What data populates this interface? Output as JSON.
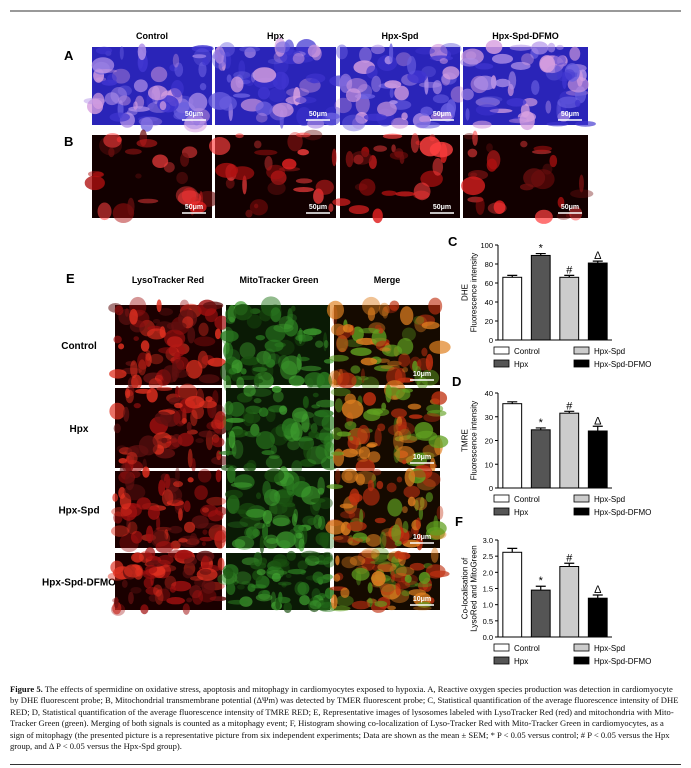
{
  "panels": {
    "labels": [
      "A",
      "B",
      "C",
      "D",
      "E",
      "F"
    ],
    "columns_AB": [
      "Control",
      "Hpx",
      "Hpx-Spd",
      "Hpx-Spd-DFMO"
    ],
    "scale_AB": "50μm",
    "columns_E": [
      "LysoTracker Red",
      "MitoTracker Green",
      "Merge"
    ],
    "rows_E": [
      "Control",
      "Hpx",
      "Hpx-Spd",
      "Hpx-Spd-DFMO"
    ],
    "scale_E": "10μm"
  },
  "chart_data": [
    {
      "type": "bar",
      "y_label": [
        "DHE",
        "Fluorescence intensity"
      ],
      "categories": [
        "Control",
        "Hpx",
        "Hpx-Spd",
        "Hpx-Spd-DFMO"
      ],
      "values": [
        66,
        89,
        66,
        81
      ],
      "errors": [
        2,
        2,
        2,
        2
      ],
      "annotations": [
        null,
        "*",
        "#",
        "Δ"
      ],
      "colors": [
        "#ffffff",
        "#555555",
        "#cccccc",
        "#000000"
      ],
      "ylim": [
        0,
        100
      ],
      "yticks": [
        0,
        20,
        40,
        60,
        80,
        100
      ]
    },
    {
      "type": "bar",
      "y_label": [
        "TMRE",
        "Fluorescence intensity"
      ],
      "categories": [
        "Control",
        "Hpx",
        "Hpx-Spd",
        "Hpx-Spd-DFMO"
      ],
      "values": [
        35.5,
        24.5,
        31.5,
        24
      ],
      "errors": [
        0.8,
        0.8,
        0.8,
        2
      ],
      "annotations": [
        null,
        "*",
        "#",
        "Δ"
      ],
      "colors": [
        "#ffffff",
        "#555555",
        "#cccccc",
        "#000000"
      ],
      "ylim": [
        0,
        40
      ],
      "yticks": [
        0,
        10,
        20,
        30,
        40
      ]
    },
    {
      "type": "bar",
      "y_label": [
        "Co-localisation of",
        "LysoRed and MitoGreen"
      ],
      "categories": [
        "Control",
        "Hpx",
        "Hpx-Spd",
        "Hpx-Spd-DFMO"
      ],
      "values": [
        2.62,
        1.45,
        2.18,
        1.2
      ],
      "errors": [
        0.12,
        0.12,
        0.1,
        0.1
      ],
      "annotations": [
        null,
        "*",
        "#",
        "Δ"
      ],
      "colors": [
        "#ffffff",
        "#555555",
        "#cccccc",
        "#000000"
      ],
      "ylim": [
        0,
        3
      ],
      "yticks": [
        {
          "value": 0,
          "label": "0.0"
        },
        {
          "value": 0.5,
          "label": "0.5"
        },
        {
          "value": 1,
          "label": "1.0"
        },
        {
          "value": 1.5,
          "label": "1.5"
        },
        {
          "value": 2,
          "label": "2.0"
        },
        {
          "value": 2.5,
          "label": "2.5"
        },
        {
          "value": 3,
          "label": "3.0"
        }
      ]
    }
  ],
  "caption": {
    "label": "Figure 5.",
    "text": "The effects of spermidine on oxidative stress, apoptosis and mitophagy in cardiomyocytes exposed to hypoxia. A, Reactive oxygen species production was detection in cardiomyocyte by DHE fluorescent probe; B, Mitochondrial transmembrane potential (ΔΨm) was detected by TMER fluorescent probe; C, Statistical quantification of the average fluorescence intensity of DHE RED; D, Statistical quantification of the average fluorescence intensity of TMRE RED; E, Representative images of lysosomes labeled with LysoTracker Red (red) and mitochondria with Mito-Tracker Green (green). Merging of both signals is counted as a mitophagy event; F, Histogram showing co-localization of Lyso-Tracker Red with Mito-Tracker Green in cardiomyocytes, as a sign of mitophagy (the presented picture is a representative picture from six independent experiments; Data are shown as the mean ± SEM; * P < 0.05 versus control; # P < 0.05 versus the Hpx group, and Δ P < 0.05 versus the Hpx-Spd group)."
  }
}
